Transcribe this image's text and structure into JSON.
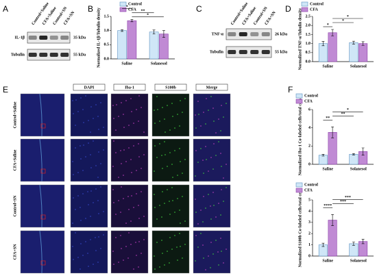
{
  "panels": {
    "A": {
      "letter": "A",
      "lanes": [
        "Control+Saline",
        "CFA+Saline",
        "Control+SN",
        "CFA+SN"
      ],
      "rows": [
        {
          "name": "IL-1β",
          "size": "35 kDa"
        },
        {
          "name": "Tubulin",
          "size": "55 kDa"
        }
      ]
    },
    "B": {
      "letter": "B"
    },
    "C": {
      "letter": "C",
      "lanes": [
        "Control+Saline",
        "CFA+Saline",
        "Control+SN",
        "CFA+SN"
      ],
      "rows": [
        {
          "name": "TNF-α",
          "size": "26 kDa"
        },
        {
          "name": "Tubulin",
          "size": "55 kDa"
        }
      ]
    },
    "D": {
      "letter": "D"
    },
    "E": {
      "letter": "E",
      "columns": [
        "DAPI",
        "Iba-1",
        "S100b",
        "Merge"
      ],
      "rows": [
        "Control+Saline",
        "CFA+Saline",
        "Control+SN",
        "CFA+SN"
      ]
    },
    "F": {
      "letter": "F"
    }
  },
  "chart_data": [
    {
      "type": "bar",
      "y_label": "Normalized IL-1β/Tubulin density",
      "categories": [
        "Saline",
        "Solanesol"
      ],
      "series": [
        {
          "name": "Control",
          "color": "#cfe6f7",
          "values": [
            1.0,
            0.95
          ],
          "errors": [
            0.03,
            0.07
          ]
        },
        {
          "name": "CFA",
          "color": "#c08ad4",
          "values": [
            1.35,
            0.88
          ],
          "errors": [
            0.04,
            0.12
          ]
        }
      ],
      "ylim": [
        0,
        1.5
      ],
      "yticks": [
        {
          "value": 0,
          "label": "0.0"
        },
        {
          "value": 0.5,
          "label": "0.5"
        },
        {
          "value": 1,
          "label": "1.0"
        },
        {
          "value": 1.5,
          "label": "1.5"
        }
      ],
      "annotations": [
        "*",
        "**",
        "*"
      ]
    },
    {
      "type": "bar",
      "y_label": "Normalized TNF-α/Tubulin density",
      "categories": [
        "Saline",
        "Solanesol"
      ],
      "series": [
        {
          "name": "Control",
          "color": "#cfe6f7",
          "values": [
            1.0,
            1.05
          ],
          "errors": [
            0.12,
            0.08
          ]
        },
        {
          "name": "CFA",
          "color": "#c08ad4",
          "values": [
            1.6,
            1.0
          ],
          "errors": [
            0.18,
            0.1
          ]
        }
      ],
      "ylim": [
        0,
        2.5
      ],
      "yticks": [
        {
          "value": 0,
          "label": "0.0"
        },
        {
          "value": 0.5,
          "label": "0.5"
        },
        {
          "value": 1,
          "label": "1.0"
        },
        {
          "value": 1.5,
          "label": "1.5"
        },
        {
          "value": 2,
          "label": "2.0"
        },
        {
          "value": 2.5,
          "label": "2.5"
        }
      ],
      "annotations": [
        "*",
        "*",
        "*"
      ]
    },
    {
      "type": "bar",
      "y_label": "Normalized Iba-1 Co-labeled cells/total cells",
      "categories": [
        "Saline",
        "Solanesol"
      ],
      "series": [
        {
          "name": "Control",
          "color": "#cfe6f7",
          "values": [
            1.0,
            1.1
          ],
          "errors": [
            0.1,
            0.08
          ]
        },
        {
          "name": "CFA",
          "color": "#c08ad4",
          "values": [
            3.5,
            1.4
          ],
          "errors": [
            0.6,
            0.4
          ]
        }
      ],
      "ylim": [
        0,
        6
      ],
      "yticks": [
        0,
        2,
        4,
        6
      ],
      "annotations": [
        "**",
        "**",
        "*"
      ]
    },
    {
      "type": "bar",
      "y_label": "Normalized S100b Co-labeled cells/total cells",
      "categories": [
        "Saline",
        "Solanesol"
      ],
      "series": [
        {
          "name": "Control",
          "color": "#cfe6f7",
          "values": [
            1.0,
            1.1
          ],
          "errors": [
            0.15,
            0.15
          ]
        },
        {
          "name": "CFA",
          "color": "#c08ad4",
          "values": [
            3.2,
            1.3
          ],
          "errors": [
            0.5,
            0.2
          ]
        }
      ],
      "ylim": [
        0,
        5
      ],
      "yticks": [
        0,
        1,
        2,
        3,
        4,
        5
      ],
      "annotations": [
        "****",
        "***",
        "***"
      ]
    }
  ]
}
